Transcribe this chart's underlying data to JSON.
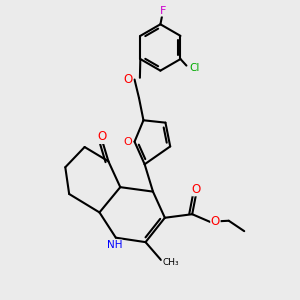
{
  "background_color": "#ebebeb",
  "bond_color": "#000000",
  "bond_width": 1.5,
  "figsize": [
    3.0,
    3.0
  ],
  "dpi": 100,
  "xlim": [
    0,
    10
  ],
  "ylim": [
    0,
    10
  ]
}
